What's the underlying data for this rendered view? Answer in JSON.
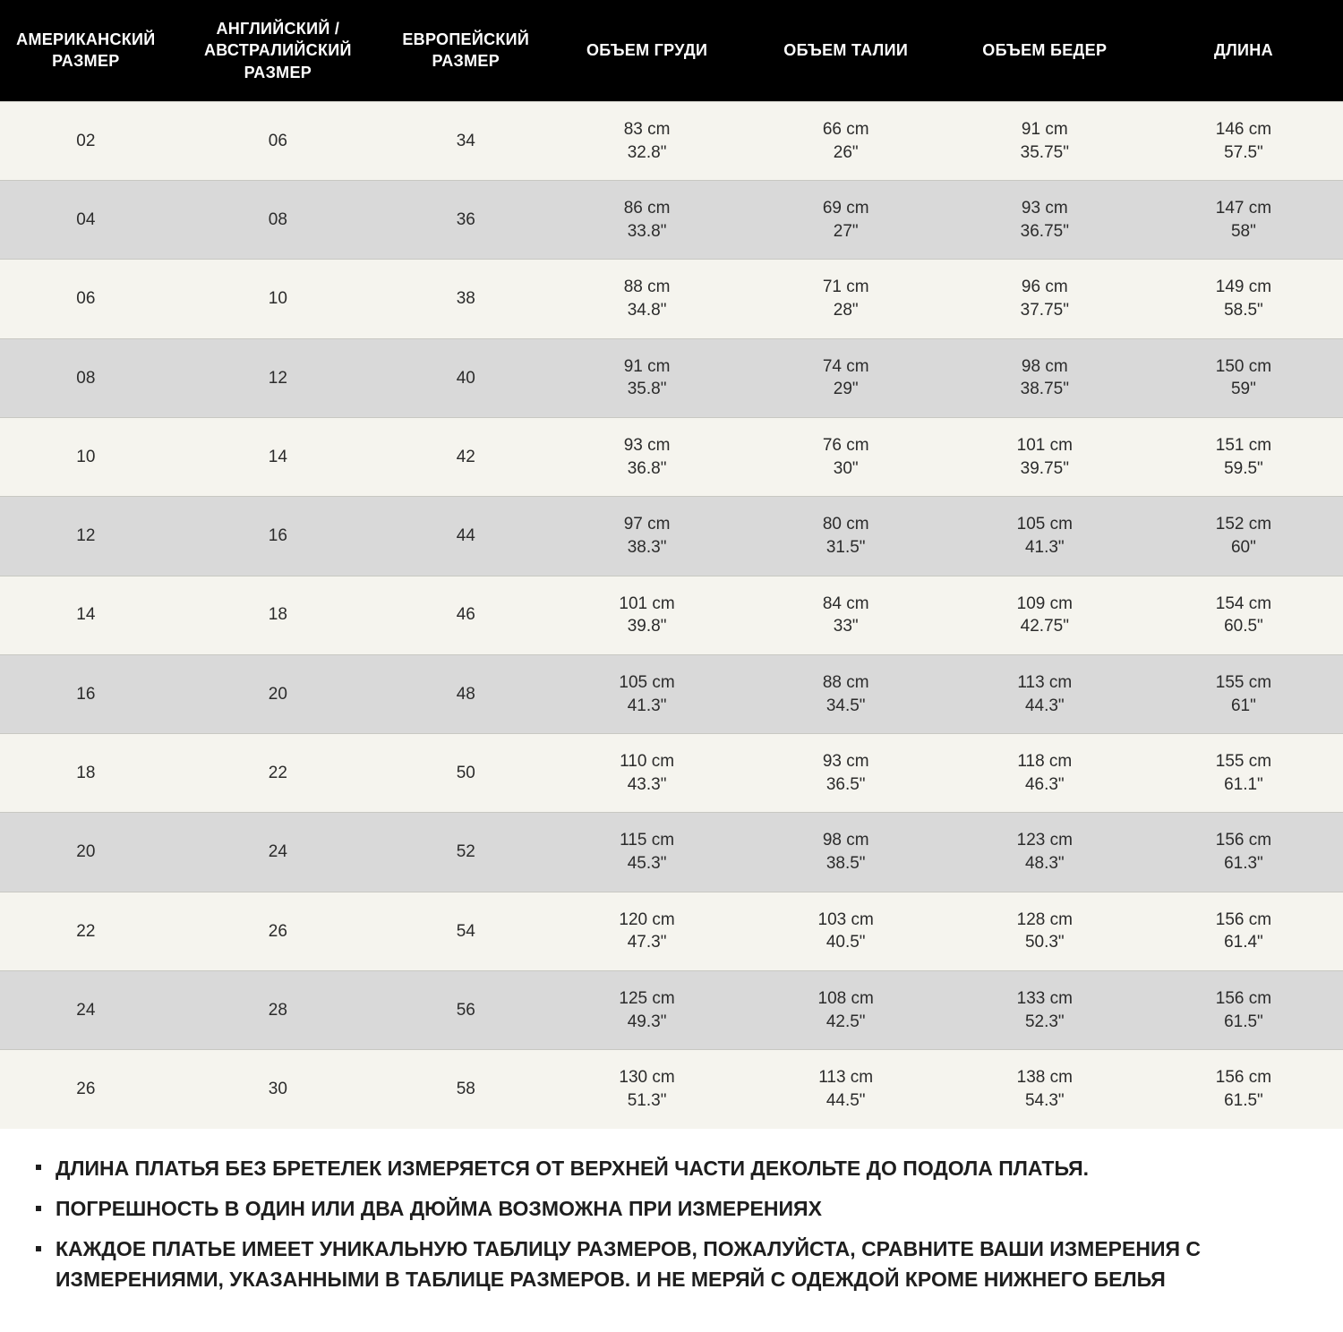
{
  "table": {
    "header_bg": "#000000",
    "header_fg": "#ffffff",
    "row_odd_bg": "#f5f4ee",
    "row_even_bg": "#d9d9d9",
    "border_color": "#c8c8c2",
    "header_fontsize": 18,
    "cell_fontsize": 19,
    "columns": [
      {
        "key": "us",
        "label": "АМЕРИКАНСКИЙ\nРАЗМЕР",
        "type": "text"
      },
      {
        "key": "uk",
        "label": "АНГЛИЙСКИЙ /\nАВСТРАЛИЙСКИЙ РАЗМЕР",
        "type": "text"
      },
      {
        "key": "eu",
        "label": "ЕВРОПЕЙСКИЙ\nРАЗМЕР",
        "type": "text"
      },
      {
        "key": "bust",
        "label": "ОБЪЕМ ГРУДИ",
        "type": "measure"
      },
      {
        "key": "waist",
        "label": "ОБЪЕМ ТАЛИИ",
        "type": "measure"
      },
      {
        "key": "hips",
        "label": "ОБЪЕМ БЕДЕР",
        "type": "measure"
      },
      {
        "key": "len",
        "label": "ДЛИНА",
        "type": "measure"
      }
    ],
    "rows": [
      {
        "us": "02",
        "uk": "06",
        "eu": "34",
        "bust": {
          "cm": "83 cm",
          "in": "32.8\""
        },
        "waist": {
          "cm": "66 cm",
          "in": "26\""
        },
        "hips": {
          "cm": "91 cm",
          "in": "35.75\""
        },
        "len": {
          "cm": "146 cm",
          "in": "57.5\""
        }
      },
      {
        "us": "04",
        "uk": "08",
        "eu": "36",
        "bust": {
          "cm": "86 cm",
          "in": "33.8\""
        },
        "waist": {
          "cm": "69 cm",
          "in": "27\""
        },
        "hips": {
          "cm": "93 cm",
          "in": "36.75\""
        },
        "len": {
          "cm": "147 cm",
          "in": "58\""
        }
      },
      {
        "us": "06",
        "uk": "10",
        "eu": "38",
        "bust": {
          "cm": "88 cm",
          "in": "34.8\""
        },
        "waist": {
          "cm": "71 cm",
          "in": "28\""
        },
        "hips": {
          "cm": "96 cm",
          "in": "37.75\""
        },
        "len": {
          "cm": "149 cm",
          "in": "58.5\""
        }
      },
      {
        "us": "08",
        "uk": "12",
        "eu": "40",
        "bust": {
          "cm": "91 cm",
          "in": "35.8\""
        },
        "waist": {
          "cm": "74 cm",
          "in": "29\""
        },
        "hips": {
          "cm": "98 cm",
          "in": "38.75\""
        },
        "len": {
          "cm": "150 cm",
          "in": "59\""
        }
      },
      {
        "us": "10",
        "uk": "14",
        "eu": "42",
        "bust": {
          "cm": "93 cm",
          "in": "36.8\""
        },
        "waist": {
          "cm": "76 cm",
          "in": "30\""
        },
        "hips": {
          "cm": "101 cm",
          "in": "39.75\""
        },
        "len": {
          "cm": "151 cm",
          "in": "59.5\""
        }
      },
      {
        "us": "12",
        "uk": "16",
        "eu": "44",
        "bust": {
          "cm": "97 cm",
          "in": "38.3\""
        },
        "waist": {
          "cm": "80 cm",
          "in": "31.5\""
        },
        "hips": {
          "cm": "105 cm",
          "in": "41.3\""
        },
        "len": {
          "cm": "152 cm",
          "in": "60\""
        }
      },
      {
        "us": "14",
        "uk": "18",
        "eu": "46",
        "bust": {
          "cm": "101 cm",
          "in": "39.8\""
        },
        "waist": {
          "cm": "84 cm",
          "in": "33\""
        },
        "hips": {
          "cm": "109 cm",
          "in": "42.75\""
        },
        "len": {
          "cm": "154 cm",
          "in": "60.5\""
        }
      },
      {
        "us": "16",
        "uk": "20",
        "eu": "48",
        "bust": {
          "cm": "105 cm",
          "in": "41.3\""
        },
        "waist": {
          "cm": "88 cm",
          "in": "34.5\""
        },
        "hips": {
          "cm": "113 cm",
          "in": "44.3\""
        },
        "len": {
          "cm": "155 cm",
          "in": "61\""
        }
      },
      {
        "us": "18",
        "uk": "22",
        "eu": "50",
        "bust": {
          "cm": "110 cm",
          "in": "43.3\""
        },
        "waist": {
          "cm": "93 cm",
          "in": "36.5\""
        },
        "hips": {
          "cm": "118 cm",
          "in": "46.3\""
        },
        "len": {
          "cm": "155 cm",
          "in": "61.1\""
        }
      },
      {
        "us": "20",
        "uk": "24",
        "eu": "52",
        "bust": {
          "cm": "115 cm",
          "in": "45.3\""
        },
        "waist": {
          "cm": "98 cm",
          "in": "38.5\""
        },
        "hips": {
          "cm": "123 cm",
          "in": "48.3\""
        },
        "len": {
          "cm": "156 cm",
          "in": "61.3\""
        }
      },
      {
        "us": "22",
        "uk": "26",
        "eu": "54",
        "bust": {
          "cm": "120 cm",
          "in": "47.3\""
        },
        "waist": {
          "cm": "103 cm",
          "in": "40.5\""
        },
        "hips": {
          "cm": "128 cm",
          "in": "50.3\""
        },
        "len": {
          "cm": "156 cm",
          "in": "61.4\""
        }
      },
      {
        "us": "24",
        "uk": "28",
        "eu": "56",
        "bust": {
          "cm": "125 cm",
          "in": "49.3\""
        },
        "waist": {
          "cm": "108 cm",
          "in": "42.5\""
        },
        "hips": {
          "cm": "133 cm",
          "in": "52.3\""
        },
        "len": {
          "cm": "156 cm",
          "in": "61.5\""
        }
      },
      {
        "us": "26",
        "uk": "30",
        "eu": "58",
        "bust": {
          "cm": "130 cm",
          "in": "51.3\""
        },
        "waist": {
          "cm": "113 cm",
          "in": "44.5\""
        },
        "hips": {
          "cm": "138 cm",
          "in": "54.3\""
        },
        "len": {
          "cm": "156 cm",
          "in": "61.5\""
        }
      }
    ]
  },
  "notes": {
    "fontsize": 23,
    "items": [
      "ДЛИНА ПЛАТЬЯ БЕЗ БРЕТЕЛЕК ИЗМЕРЯЕТСЯ ОТ ВЕРХНЕЙ ЧАСТИ ДЕКОЛЬТЕ ДО ПОДОЛА ПЛАТЬЯ.",
      "ПОГРЕШНОСТЬ В ОДИН ИЛИ ДВА ДЮЙМА ВОЗМОЖНА ПРИ ИЗМЕРЕНИЯХ",
      "КАЖДОЕ ПЛАТЬЕ ИМЕЕТ УНИКАЛЬНУЮ ТАБЛИЦУ РАЗМЕРОВ, ПОЖАЛУЙСТА, СРАВНИТЕ ВАШИ ИЗМЕРЕНИЯ С ИЗМЕРЕНИЯМИ, УКАЗАННЫМИ В ТАБЛИЦЕ РАЗМЕРОВ. И НЕ МЕРЯЙ С ОДЕЖДОЙ КРОМЕ НИЖНЕГО БЕЛЬЯ"
    ]
  }
}
